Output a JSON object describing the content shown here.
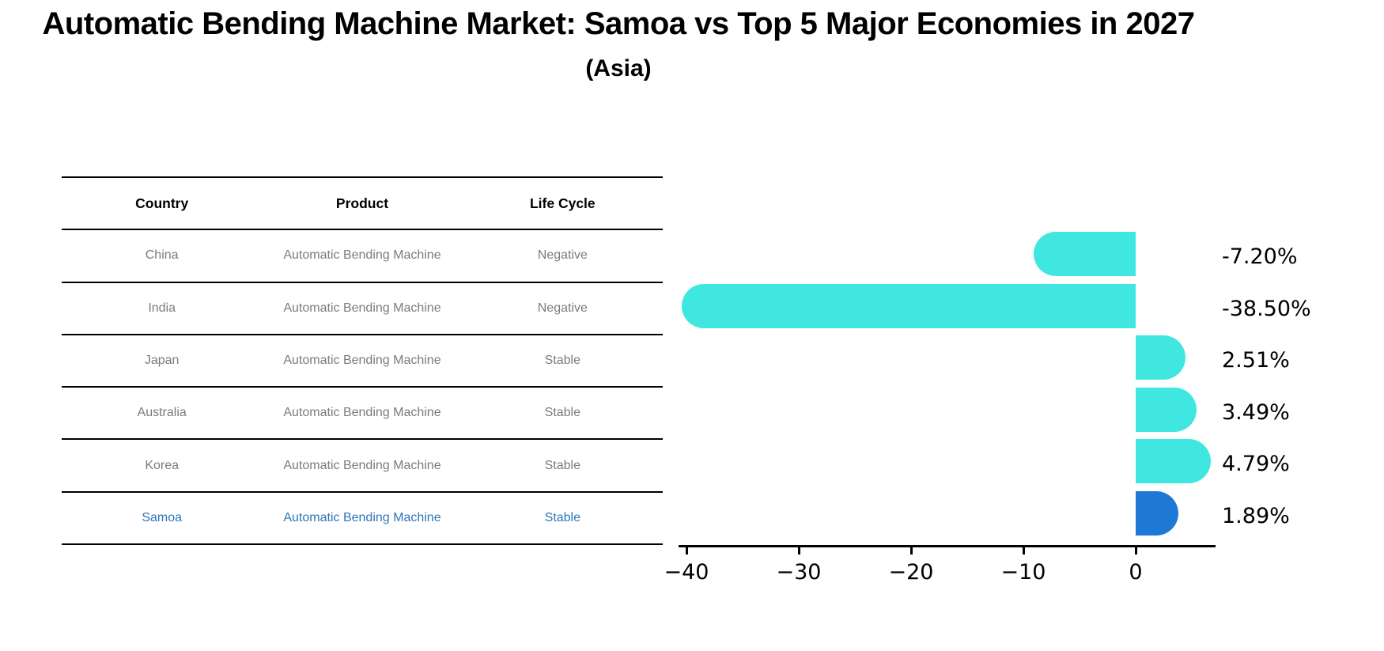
{
  "title": "Automatic Bending Machine Market: Samoa vs Top 5 Major Economies in 2027",
  "subtitle": "(Asia)",
  "table": {
    "headers": [
      "Country",
      "Product",
      "Life Cycle"
    ],
    "rows": [
      {
        "country": "China",
        "product": "Automatic Bending Machine",
        "life_cycle": "Negative",
        "highlight": false
      },
      {
        "country": "India",
        "product": "Automatic Bending Machine",
        "life_cycle": "Negative",
        "highlight": false
      },
      {
        "country": "Japan",
        "product": "Automatic Bending Machine",
        "life_cycle": "Stable",
        "highlight": false
      },
      {
        "country": "Australia",
        "product": "Automatic Bending Machine",
        "life_cycle": "Stable",
        "highlight": false
      },
      {
        "country": "Korea",
        "product": "Automatic Bending Machine",
        "life_cycle": "Stable",
        "highlight": false
      },
      {
        "country": "Samoa",
        "product": "Automatic Bending Machine",
        "life_cycle": "Stable",
        "highlight": true
      }
    ]
  },
  "chart_data": {
    "type": "bar",
    "orientation": "horizontal",
    "categories": [
      "China",
      "India",
      "Japan",
      "Australia",
      "Korea",
      "Samoa"
    ],
    "values": [
      -7.2,
      -38.5,
      2.51,
      3.49,
      4.79,
      1.89
    ],
    "value_labels": [
      "-7.20%",
      "-38.50%",
      "2.51%",
      "3.49%",
      "4.79%",
      "1.89%"
    ],
    "x_tick_labels": [
      "−40",
      "−30",
      "−20",
      "−10",
      "0"
    ],
    "x_tick_values": [
      -40,
      -30,
      -20,
      -10,
      0
    ],
    "xlim": [
      -40.7,
      7.1
    ],
    "grid": false,
    "legend_position": "none",
    "bar_color": "#40E7E0",
    "highlight_bar_color": "#1E78D6",
    "highlight_text_color": "#2E75B6",
    "highlight_index": 5
  }
}
